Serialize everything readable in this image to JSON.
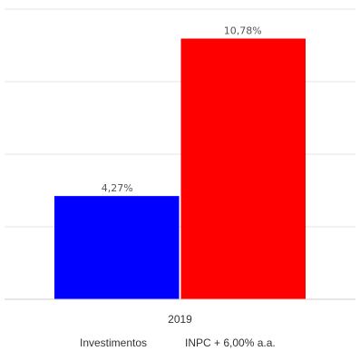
{
  "chart_data": {
    "type": "bar",
    "categories": [
      "2019"
    ],
    "series": [
      {
        "name": "Investimentos",
        "values": [
          4.27
        ],
        "label": "4,27%",
        "color": "#0000ff"
      },
      {
        "name": "INPC + 6,00% a.a.",
        "values": [
          10.78
        ],
        "label": "10,78%",
        "color": "#ff0000"
      }
    ],
    "ylim": [
      0,
      12
    ],
    "grid": true,
    "legend_position": "bottom"
  }
}
